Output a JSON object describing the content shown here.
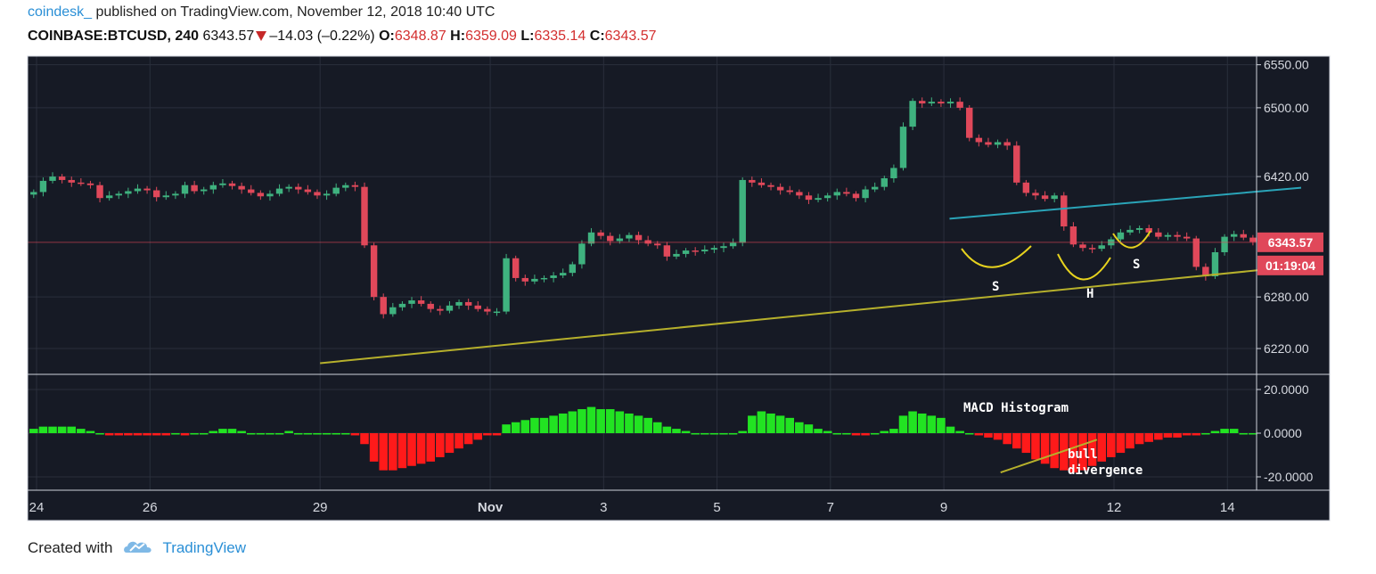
{
  "header": {
    "username": "coindesk_",
    "published_text": "published on TradingView.com, November 12, 2018 10:40 UTC",
    "symbol": "COINBASE:BTCUSD, 240",
    "last": "6343.57",
    "change": "–14.03 (–0.22%)",
    "open_label": "O:",
    "open": "6348.87",
    "high_label": "H:",
    "high": "6359.09",
    "low_label": "L:",
    "low": "6335.14",
    "close_label": "C:",
    "close": "6343.57"
  },
  "footer": {
    "created_with": "Created with",
    "brand": "TradingView",
    "logo_icon": "tradingview-cloud-icon"
  },
  "colors": {
    "background": "#161a25",
    "up": "#3fb27f",
    "down": "#e0485a",
    "hist_up": "#22e322",
    "hist_down": "#ff1a1a",
    "trendline": "#b6b02c",
    "neckline": "#2aa4b8",
    "pattern": "#e6d21e",
    "price_label": "#e0485a"
  },
  "chart_data": {
    "type": "candlestick",
    "price_axis": {
      "min": 6190,
      "max": 6560,
      "ticks": [
        6550,
        6500,
        6420,
        6280,
        6220
      ],
      "tick_labels": [
        "6550.00",
        "6500.00",
        "6420.00",
        "6280.00",
        "6220.00"
      ]
    },
    "macd_axis": {
      "min": -25,
      "max": 25,
      "ticks": [
        20,
        0,
        -20
      ],
      "tick_labels": [
        "20.0000",
        "0.0000",
        "-20.0000"
      ]
    },
    "x_axis": {
      "first_bar_day": 24,
      "bars_per_day": 6,
      "ticks": [
        {
          "day": 24,
          "label": "24"
        },
        {
          "day": 26,
          "label": "26"
        },
        {
          "day": 29,
          "label": "29"
        },
        {
          "day": 32,
          "label": "Nov"
        },
        {
          "day": 34,
          "label": "3"
        },
        {
          "day": 36,
          "label": "5"
        },
        {
          "day": 38,
          "label": "7"
        },
        {
          "day": 40,
          "label": "9"
        },
        {
          "day": 43,
          "label": "12"
        },
        {
          "day": 45,
          "label": "14"
        }
      ]
    },
    "last_price_label": "6343.57",
    "countdown_label": "01:19:04",
    "close_series": [
      6402,
      6415,
      6420,
      6416,
      6413,
      6412,
      6410,
      6395,
      6398,
      6400,
      6403,
      6406,
      6404,
      6396,
      6398,
      6400,
      6410,
      6403,
      6405,
      6410,
      6412,
      6409,
      6405,
      6401,
      6397,
      6400,
      6406,
      6408,
      6405,
      6402,
      6398,
      6400,
      6407,
      6410,
      6408,
      6340,
      6280,
      6260,
      6268,
      6272,
      6276,
      6272,
      6266,
      6264,
      6270,
      6274,
      6270,
      6266,
      6263,
      6263,
      6325,
      6302,
      6298,
      6301,
      6302,
      6305,
      6308,
      6318,
      6342,
      6355,
      6351,
      6345,
      6348,
      6352,
      6346,
      6342,
      6340,
      6327,
      6330,
      6334,
      6333,
      6335,
      6337,
      6339,
      6343,
      6416,
      6413,
      6410,
      6408,
      6404,
      6402,
      6398,
      6393,
      6395,
      6398,
      6402,
      6400,
      6395,
      6405,
      6408,
      6418,
      6430,
      6478,
      6508,
      6505,
      6507,
      6505,
      6507,
      6500,
      6465,
      6460,
      6457,
      6460,
      6456,
      6413,
      6401,
      6398,
      6394,
      6398,
      6362,
      6341,
      6337,
      6336,
      6340,
      6347,
      6355,
      6358,
      6360,
      6355,
      6350,
      6352,
      6350,
      6348,
      6315,
      6304,
      6332,
      6350,
      6353,
      6349,
      6344
    ],
    "macd_histogram": [
      2,
      3,
      3,
      3,
      3,
      2,
      1,
      0,
      -1,
      -1,
      -1,
      -1,
      -1,
      -1,
      -1,
      0,
      -1,
      0,
      0,
      1,
      2,
      2,
      1,
      0,
      0,
      0,
      0,
      1,
      0,
      0,
      0,
      0,
      0,
      0,
      -1,
      -5,
      -13,
      -17,
      -17,
      -16,
      -15,
      -14,
      -13,
      -11,
      -9,
      -7,
      -5,
      -3,
      -1,
      -1,
      4,
      5,
      6,
      7,
      7,
      8,
      9,
      10,
      11,
      12,
      11,
      11,
      10,
      9,
      8,
      7,
      5,
      3,
      2,
      1,
      0,
      0,
      0,
      0,
      0,
      1,
      8,
      10,
      9,
      8,
      7,
      5,
      4,
      2,
      1,
      0,
      0,
      -1,
      -1,
      0,
      1,
      2,
      8,
      10,
      9,
      8,
      7,
      3,
      1,
      0,
      -1,
      -2,
      -3,
      -5,
      -7,
      -9,
      -12,
      -14,
      -16,
      -17,
      -18,
      -17,
      -15,
      -13,
      -11,
      -9,
      -7,
      -5,
      -4,
      -3,
      -2,
      -2,
      -1,
      -1,
      0,
      1,
      2,
      2,
      0,
      0
    ],
    "annotations": {
      "shoulder_left": "S",
      "head": "H",
      "shoulder_right": "S",
      "macd_title": "MACD Histogram",
      "divergence_1": "bull",
      "divergence_2": "divergence"
    },
    "lines": {
      "support": [
        {
          "day": 29.0,
          "value": 6203
        },
        {
          "day": 46.3,
          "value": 6316
        }
      ],
      "neckline": [
        {
          "day": 40.1,
          "value": 6371
        },
        {
          "day": 46.3,
          "value": 6407
        }
      ],
      "divergence": [
        {
          "day": 41.0,
          "value": -18
        },
        {
          "day": 42.7,
          "value": -3
        }
      ]
    }
  }
}
